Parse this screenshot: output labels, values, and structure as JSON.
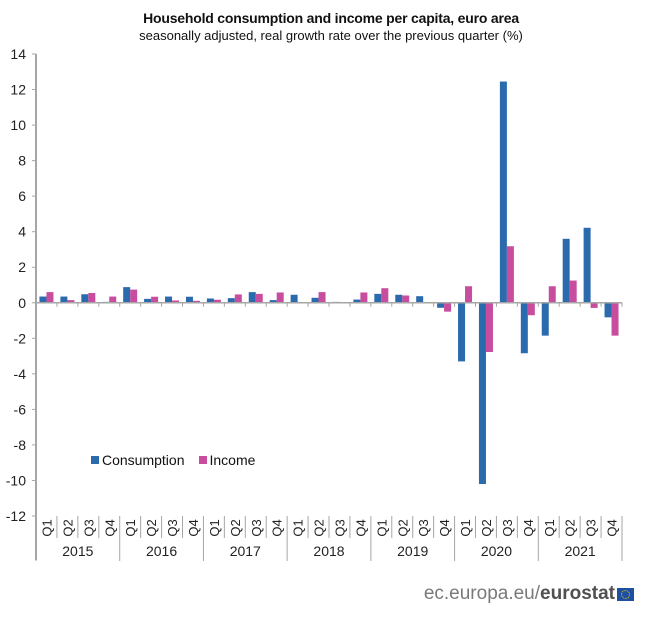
{
  "chart_data": {
    "type": "bar",
    "title": "Household consumption and income per capita, euro area",
    "subtitle": "seasonally adjusted, real growth rate over the previous quarter (%)",
    "xlabel": "",
    "ylabel": "",
    "ylim": [
      -12,
      14
    ],
    "yticks": [
      14,
      12,
      10,
      8,
      6,
      4,
      2,
      0,
      -2,
      -4,
      -6,
      -8,
      -10,
      -12
    ],
    "grid": false,
    "legend_position": "bottom-left",
    "quarter_labels": [
      "Q1",
      "Q2",
      "Q3",
      "Q4"
    ],
    "years": [
      "2015",
      "2016",
      "2017",
      "2018",
      "2019",
      "2020",
      "2021"
    ],
    "categories": [
      "2015 Q1",
      "2015 Q2",
      "2015 Q3",
      "2015 Q4",
      "2016 Q1",
      "2016 Q2",
      "2016 Q3",
      "2016 Q4",
      "2017 Q1",
      "2017 Q2",
      "2017 Q3",
      "2017 Q4",
      "2018 Q1",
      "2018 Q2",
      "2018 Q3",
      "2018 Q4",
      "2019 Q1",
      "2019 Q2",
      "2019 Q3",
      "2019 Q4",
      "2020 Q1",
      "2020 Q2",
      "2020 Q3",
      "2020 Q4",
      "2021 Q1",
      "2021 Q2",
      "2021 Q3",
      "2021 Q4"
    ],
    "series": [
      {
        "name": "Consumption",
        "color": "#2b6aad",
        "values": [
          0.35,
          0.35,
          0.48,
          0.05,
          0.88,
          0.22,
          0.35,
          0.34,
          0.24,
          0.26,
          0.6,
          0.15,
          0.45,
          0.28,
          0.05,
          0.18,
          0.5,
          0.45,
          0.37,
          -0.28,
          -3.3,
          -10.2,
          12.45,
          -2.84,
          -1.85,
          3.6,
          4.22,
          -0.82
        ]
      },
      {
        "name": "Income",
        "color": "#c84d9e",
        "values": [
          0.6,
          0.15,
          0.55,
          0.35,
          0.74,
          0.34,
          0.13,
          0.11,
          0.17,
          0.47,
          0.5,
          0.58,
          0.0,
          0.6,
          0.03,
          0.58,
          0.82,
          0.41,
          0.0,
          -0.5,
          0.93,
          -2.77,
          3.18,
          -0.7,
          0.93,
          1.25,
          -0.29,
          -1.85
        ]
      }
    ]
  },
  "footer": {
    "site": "ec.europa.eu/",
    "brand": "eurostat",
    "flag_icon": "eu-flag-icon"
  }
}
